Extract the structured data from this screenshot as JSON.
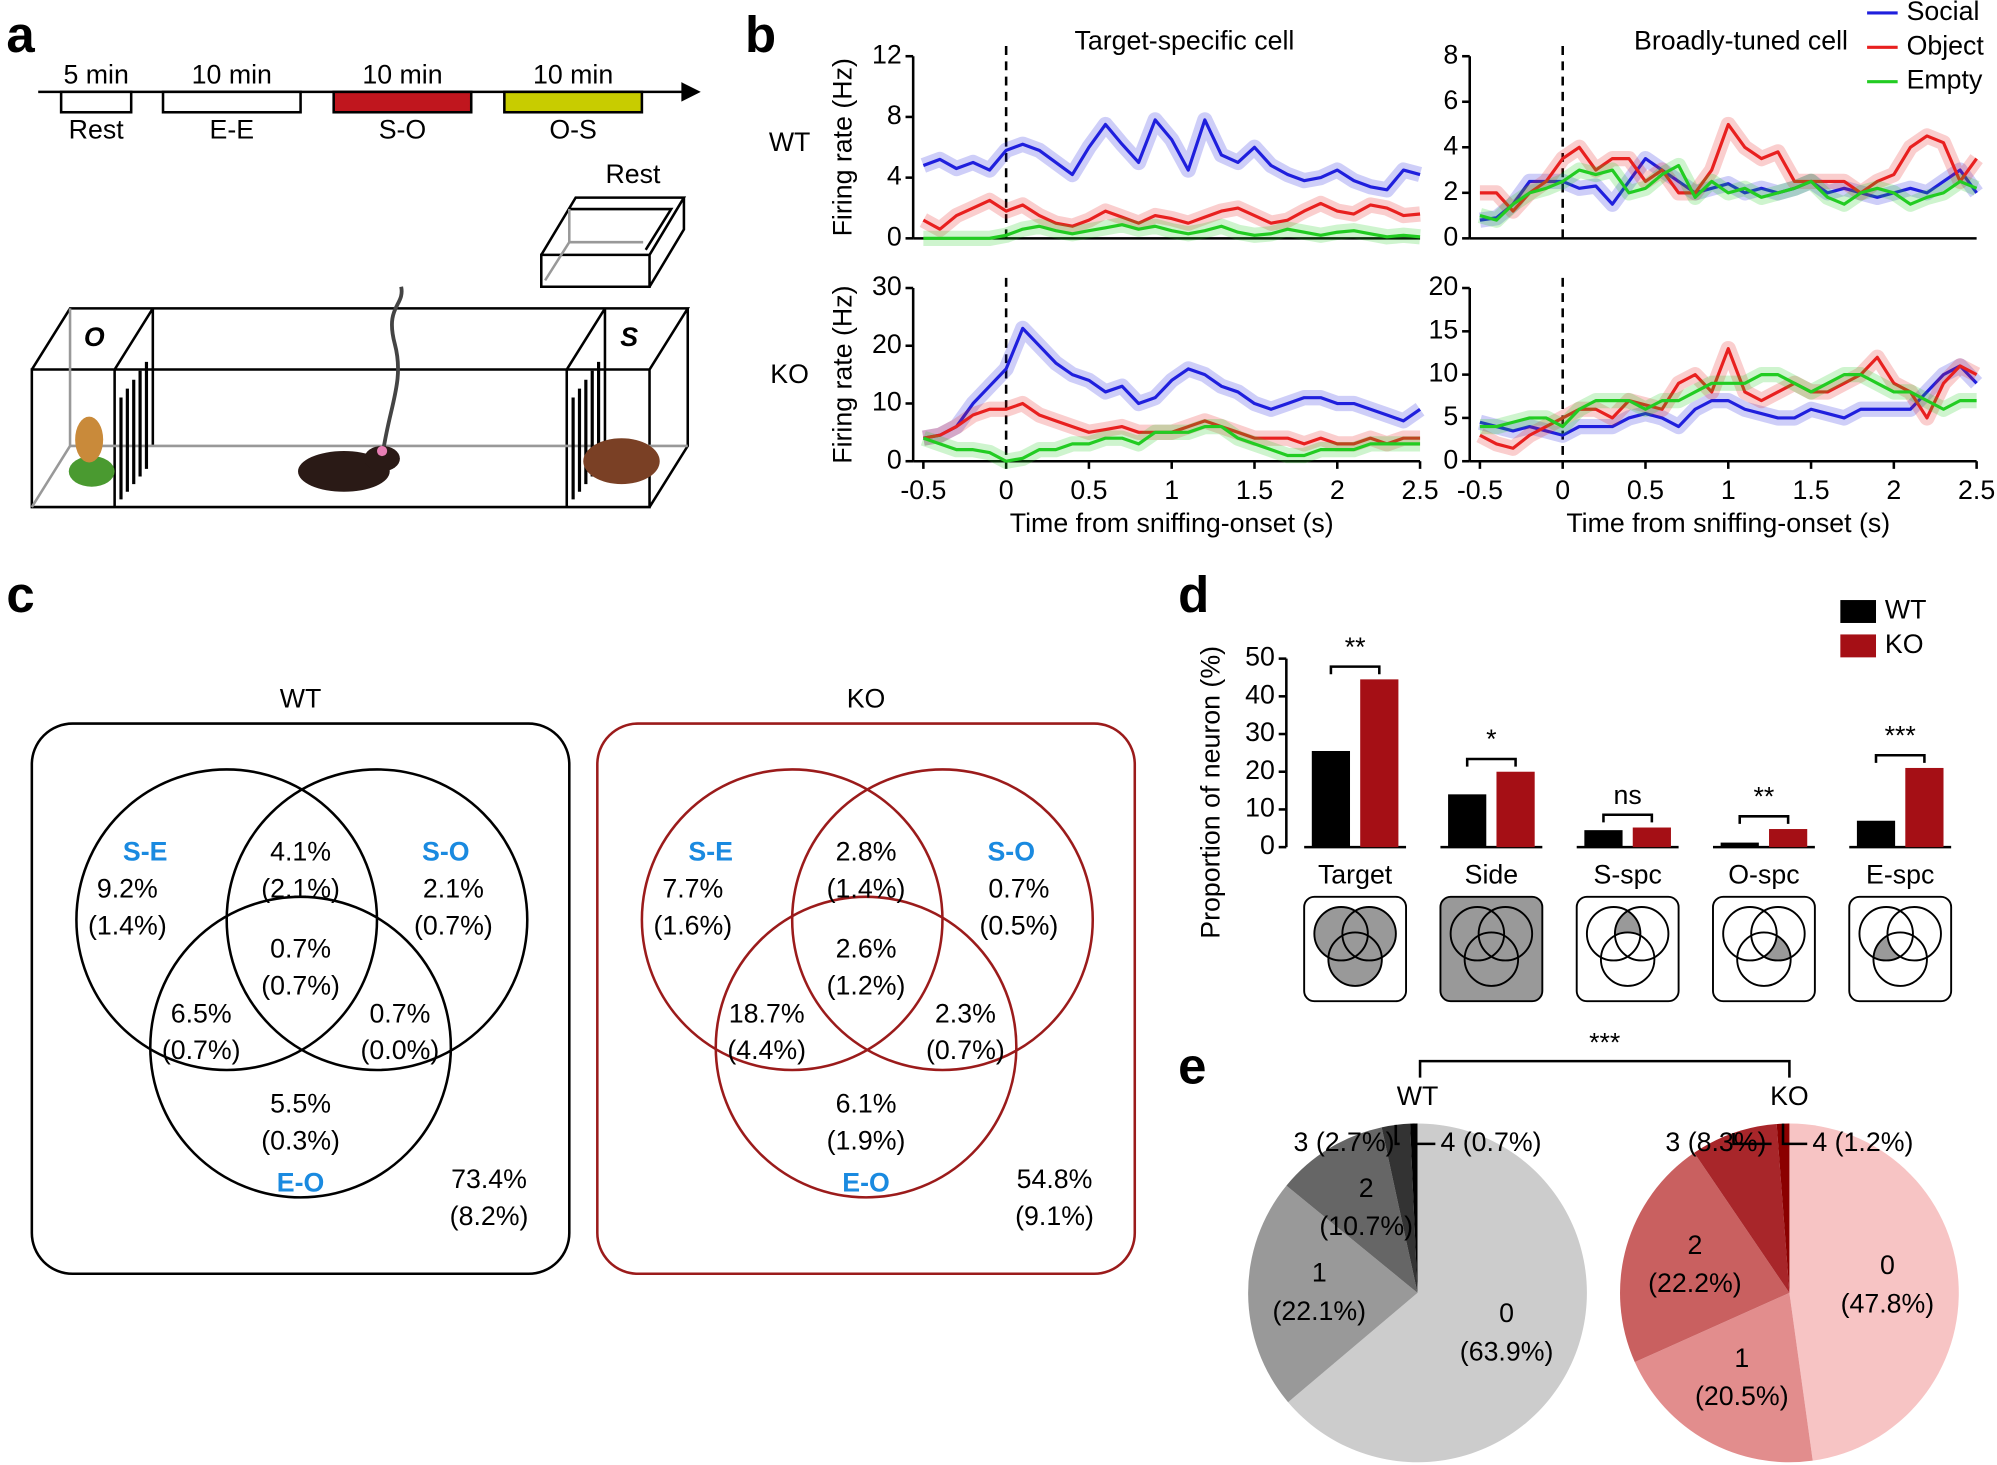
{
  "panel_labels": [
    "a",
    "b",
    "c",
    "d",
    "e"
  ],
  "panel_a": {
    "timeline": [
      {
        "duration": "5 min",
        "label": "Rest",
        "color": "#ffffff"
      },
      {
        "duration": "10 min",
        "label": "E-E",
        "color": "#ffffff"
      },
      {
        "duration": "10 min",
        "label": "S-O",
        "color": "#c0161e"
      },
      {
        "duration": "10 min",
        "label": "O-S",
        "color": "#c8cc00"
      }
    ],
    "rest_box_label": "Rest",
    "object_label": "O",
    "social_label": "S"
  },
  "panel_b": {
    "row_labels": [
      "WT",
      "KO"
    ]
  },
  "chart_data": [
    {
      "type": "line",
      "title": "Target-specific cell",
      "ylabel": "Firing rate (Hz)",
      "xlim": [
        -0.5,
        2.5
      ],
      "ylim": [
        0,
        12
      ],
      "yticks": [
        0,
        4,
        8,
        12
      ],
      "reference_x": 0,
      "x": [
        -0.5,
        -0.4,
        -0.3,
        -0.2,
        -0.1,
        0,
        0.1,
        0.2,
        0.3,
        0.4,
        0.5,
        0.6,
        0.7,
        0.8,
        0.9,
        1,
        1.1,
        1.2,
        1.3,
        1.4,
        1.5,
        1.6,
        1.7,
        1.8,
        1.9,
        2,
        2.1,
        2.2,
        2.3,
        2.4,
        2.5
      ],
      "series": [
        {
          "name": "Social",
          "color": "#1f1fdd",
          "values": [
            4.8,
            5.2,
            4.6,
            5.0,
            4.5,
            5.8,
            6.2,
            5.8,
            5.0,
            4.2,
            6.0,
            7.5,
            6.2,
            5.0,
            7.8,
            6.5,
            4.5,
            7.8,
            5.5,
            5.0,
            6.0,
            4.8,
            4.2,
            3.8,
            4.0,
            4.5,
            3.8,
            3.4,
            3.2,
            4.5,
            4.2
          ]
        },
        {
          "name": "Object",
          "color": "#e8201f",
          "values": [
            1.2,
            0.6,
            1.5,
            2.0,
            2.5,
            1.8,
            2.2,
            1.5,
            1.0,
            0.8,
            1.2,
            1.8,
            1.4,
            1.0,
            1.5,
            1.3,
            1.0,
            1.4,
            1.8,
            2.0,
            1.5,
            1.0,
            1.2,
            1.8,
            2.3,
            1.8,
            1.6,
            2.2,
            2.0,
            1.5,
            1.6
          ]
        },
        {
          "name": "Empty",
          "color": "#22cc22",
          "values": [
            0,
            0,
            0,
            0,
            0,
            0.2,
            0.6,
            0.8,
            0.5,
            0.3,
            0.5,
            0.7,
            0.9,
            0.6,
            0.8,
            0.5,
            0.3,
            0.5,
            0.8,
            0.4,
            0.2,
            0.3,
            0.6,
            0.4,
            0.2,
            0.4,
            0.5,
            0.3,
            0.1,
            0.2,
            0.1
          ]
        }
      ]
    },
    {
      "type": "line",
      "title": "Broadly-tuned cell",
      "legend": "top-right",
      "xlim": [
        -0.5,
        2.5
      ],
      "ylim": [
        0,
        8
      ],
      "yticks": [
        0,
        2,
        4,
        6,
        8
      ],
      "reference_x": 0,
      "x": [
        -0.5,
        -0.4,
        -0.3,
        -0.2,
        -0.1,
        0,
        0.1,
        0.2,
        0.3,
        0.4,
        0.5,
        0.6,
        0.7,
        0.8,
        0.9,
        1,
        1.1,
        1.2,
        1.3,
        1.4,
        1.5,
        1.6,
        1.7,
        1.8,
        1.9,
        2,
        2.1,
        2.2,
        2.3,
        2.4,
        2.5
      ],
      "series": [
        {
          "name": "Social",
          "color": "#1f1fdd",
          "values": [
            0.8,
            0.9,
            1.5,
            2.5,
            2.5,
            2.5,
            2.2,
            2.3,
            1.5,
            2.5,
            3.5,
            3.0,
            2.5,
            2.0,
            2.2,
            2.4,
            2.0,
            2.2,
            2.0,
            2.2,
            2.5,
            2.0,
            2.2,
            2.0,
            1.8,
            2.0,
            2.2,
            2.0,
            2.5,
            3.0,
            2.0
          ]
        },
        {
          "name": "Object",
          "color": "#e8201f",
          "values": [
            2.0,
            2.0,
            1.2,
            2.0,
            2.5,
            3.5,
            4.0,
            3.0,
            3.5,
            3.5,
            2.5,
            3.0,
            2.0,
            2.0,
            3.0,
            5.0,
            4.0,
            3.5,
            3.8,
            2.5,
            2.5,
            2.5,
            2.5,
            2.0,
            2.5,
            2.8,
            4.0,
            4.5,
            4.2,
            2.5,
            3.5
          ]
        },
        {
          "name": "Empty",
          "color": "#22cc22",
          "values": [
            1.0,
            0.8,
            1.5,
            2.0,
            2.2,
            2.5,
            3.0,
            2.8,
            3.0,
            2.0,
            2.2,
            2.8,
            3.2,
            1.8,
            2.5,
            2.0,
            2.2,
            1.8,
            2.0,
            2.2,
            2.5,
            1.8,
            1.5,
            2.0,
            2.2,
            2.0,
            1.5,
            1.8,
            2.0,
            2.5,
            2.2
          ]
        }
      ]
    },
    {
      "type": "line",
      "ylabel": "Firing rate (Hz)",
      "xlabel": "Time from sniffing-onset (s)",
      "xlim": [
        -0.5,
        2.5
      ],
      "xticks": [
        -0.5,
        0,
        0.5,
        1,
        1.5,
        2,
        2.5
      ],
      "ylim": [
        0,
        30
      ],
      "yticks": [
        0,
        10,
        20,
        30
      ],
      "reference_x": 0,
      "x": [
        -0.5,
        -0.4,
        -0.3,
        -0.2,
        -0.1,
        0,
        0.1,
        0.2,
        0.3,
        0.4,
        0.5,
        0.6,
        0.7,
        0.8,
        0.9,
        1,
        1.1,
        1.2,
        1.3,
        1.4,
        1.5,
        1.6,
        1.7,
        1.8,
        1.9,
        2,
        2.1,
        2.2,
        2.3,
        2.4,
        2.5
      ],
      "series": [
        {
          "name": "Social",
          "color": "#1f1fdd",
          "values": [
            4,
            4.5,
            6,
            10,
            13,
            16,
            23,
            20,
            17,
            15,
            14,
            12,
            13,
            10,
            11,
            14,
            16,
            15,
            13,
            12,
            10,
            9,
            10,
            11,
            11,
            10,
            10,
            9,
            8,
            7,
            9
          ]
        },
        {
          "name": "Object",
          "color": "#e8201f",
          "values": [
            4,
            4.5,
            6,
            8,
            9,
            9,
            10,
            8,
            7,
            6,
            5,
            5.5,
            6,
            5,
            5,
            5,
            6,
            7,
            6,
            5,
            4,
            4,
            4,
            3,
            4,
            3,
            3,
            4,
            3,
            4,
            4
          ]
        },
        {
          "name": "Empty",
          "color": "#22cc22",
          "values": [
            4,
            3,
            2,
            2,
            1.5,
            0,
            0.5,
            2,
            2,
            3,
            3,
            4,
            4,
            3,
            5,
            5,
            5,
            6,
            6,
            4,
            3,
            2,
            1,
            1,
            2,
            2,
            2,
            3,
            3,
            3,
            3
          ]
        }
      ]
    },
    {
      "type": "line",
      "xlabel": "Time from sniffing-onset (s)",
      "xlim": [
        -0.5,
        2.5
      ],
      "xticks": [
        -0.5,
        0,
        0.5,
        1,
        1.5,
        2,
        2.5
      ],
      "ylim": [
        0,
        20
      ],
      "yticks": [
        0,
        5,
        10,
        15,
        20
      ],
      "reference_x": 0,
      "x": [
        -0.5,
        -0.4,
        -0.3,
        -0.2,
        -0.1,
        0,
        0.1,
        0.2,
        0.3,
        0.4,
        0.5,
        0.6,
        0.7,
        0.8,
        0.9,
        1,
        1.1,
        1.2,
        1.3,
        1.4,
        1.5,
        1.6,
        1.7,
        1.8,
        1.9,
        2,
        2.1,
        2.2,
        2.3,
        2.4,
        2.5
      ],
      "series": [
        {
          "name": "Social",
          "color": "#1f1fdd",
          "values": [
            4.5,
            4,
            3.5,
            4,
            3.5,
            3,
            4,
            4,
            4,
            5,
            5.5,
            5,
            4,
            6,
            7,
            7,
            6,
            5.5,
            5,
            5,
            6,
            5.5,
            5,
            6,
            6,
            6,
            6,
            8,
            10,
            11,
            9
          ]
        },
        {
          "name": "Object",
          "color": "#e8201f",
          "values": [
            3,
            2,
            1.5,
            3,
            4,
            5,
            6,
            6,
            5,
            7,
            6.5,
            6,
            9,
            10,
            8,
            13,
            8,
            7,
            8,
            9,
            8,
            8,
            9,
            10,
            12,
            9,
            8,
            5,
            9,
            11,
            10
          ]
        },
        {
          "name": "Empty",
          "color": "#22cc22",
          "values": [
            4,
            4,
            4.5,
            5,
            5,
            4,
            6,
            7,
            7,
            7,
            6,
            7,
            7,
            8,
            9,
            9,
            9,
            10,
            10,
            9,
            8,
            9,
            10,
            10,
            9,
            8,
            8,
            7,
            6,
            7,
            7
          ]
        }
      ]
    },
    {
      "type": "bar",
      "ylabel": "Proportion of neuron (%)",
      "legend": "top-right",
      "categories": [
        "Target",
        "Side",
        "S-spc",
        "O-spc",
        "E-spc"
      ],
      "series": [
        {
          "name": "WT",
          "color": "#000000",
          "values": [
            25.5,
            14,
            4.5,
            1.2,
            7
          ]
        },
        {
          "name": "KO",
          "color": "#a50f15",
          "values": [
            44.5,
            20,
            5.2,
            4.8,
            21
          ]
        }
      ],
      "annotations": [
        "**",
        "*",
        "ns",
        "**",
        "***"
      ],
      "ylim": [
        0,
        50
      ],
      "yticks": [
        0,
        10,
        20,
        30,
        40,
        50
      ]
    },
    {
      "type": "pie",
      "title": "WT",
      "categories": [
        "0",
        "1",
        "2",
        "3",
        "4"
      ],
      "values": [
        63.9,
        22.1,
        10.7,
        2.7,
        0.7
      ],
      "value_labels": [
        "(63.9%)",
        "(22.1%)",
        "(10.7%)",
        "(2.7%)",
        "(0.7%)"
      ],
      "colors": [
        "#cccccc",
        "#999999",
        "#666666",
        "#333333",
        "#000000"
      ]
    },
    {
      "type": "pie",
      "title": "KO",
      "categories": [
        "0",
        "1",
        "2",
        "3",
        "4"
      ],
      "values": [
        47.8,
        20.5,
        22.2,
        8.3,
        1.2
      ],
      "value_labels": [
        "(47.8%)",
        "(20.5%)",
        "(22.2%)",
        "(8.3%)",
        "(1.2%)"
      ],
      "colors": [
        "#f7c4c4",
        "#e28d8d",
        "#c96060",
        "#a8262a",
        "#8b0000"
      ]
    }
  ],
  "panel_c": {
    "venns": [
      {
        "title": "WT",
        "color": "#000000",
        "set_labels": [
          "S-E",
          "S-O",
          "E-O"
        ],
        "regions": [
          [
            "9.2%",
            "(1.4%)"
          ],
          [
            "4.1%",
            "(2.1%)"
          ],
          [
            "2.1%",
            "(0.7%)"
          ],
          [
            "0.7%",
            "(0.7%)"
          ],
          [
            "6.5%",
            "(0.7%)"
          ],
          [
            "0.7%",
            "(0.0%)"
          ],
          [
            "5.5%",
            "(0.3%)"
          ],
          [
            "73.4%",
            "(8.2%)"
          ]
        ]
      },
      {
        "title": "KO",
        "color": "#9b1b1b",
        "set_labels": [
          "S-E",
          "S-O",
          "E-O"
        ],
        "regions": [
          [
            "7.7%",
            "(1.6%)"
          ],
          [
            "2.8%",
            "(1.4%)"
          ],
          [
            "0.7%",
            "(0.5%)"
          ],
          [
            "2.6%",
            "(1.2%)"
          ],
          [
            "18.7%",
            "(4.4%)"
          ],
          [
            "2.3%",
            "(0.7%)"
          ],
          [
            "6.1%",
            "(1.9%)"
          ],
          [
            "54.8%",
            "(9.1%)"
          ]
        ]
      }
    ]
  },
  "panel_e": {
    "significance": "***"
  }
}
